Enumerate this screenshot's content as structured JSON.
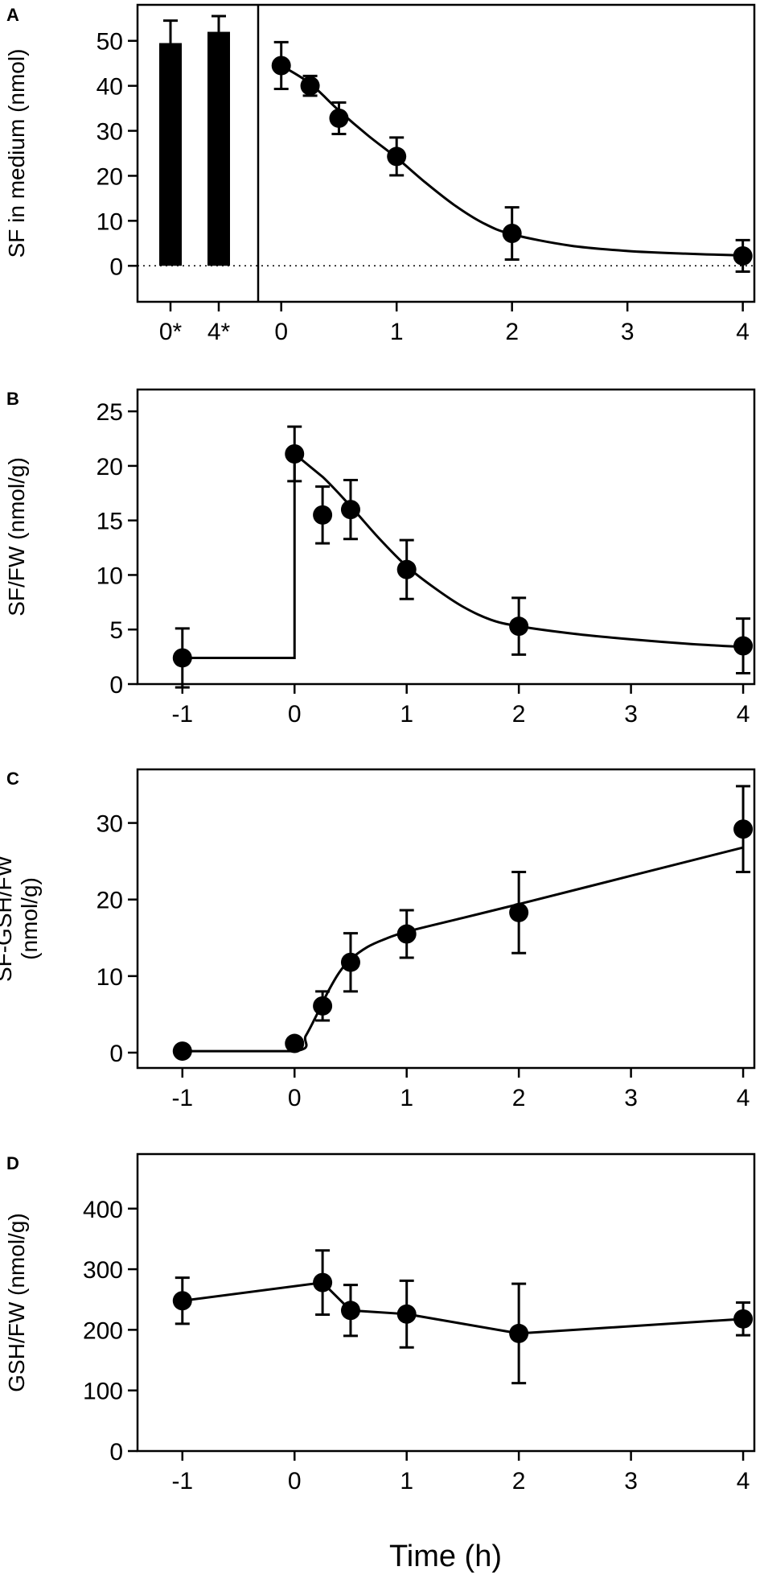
{
  "figure": {
    "x_axis_label": "Time (h)"
  },
  "chart_data": [
    {
      "panel": "A",
      "type": "bar+line",
      "ylabel": [
        "SF in medium (nmol)"
      ],
      "ylim": [
        -8,
        58
      ],
      "yticks": [
        0,
        10,
        20,
        30,
        40,
        50
      ],
      "xlim": [
        -0.2,
        4.1
      ],
      "xticks": [
        0,
        1,
        2,
        3,
        4
      ],
      "zero_dotted_line": true,
      "bars": {
        "categories": [
          "0*",
          "4*"
        ],
        "values": [
          49.5,
          52
        ],
        "errors": [
          5,
          3.5
        ]
      },
      "points": {
        "x": [
          0,
          0.25,
          0.5,
          1,
          2,
          4
        ],
        "y": [
          44.5,
          40,
          32.8,
          24.3,
          7.2,
          2.2
        ],
        "err": [
          5.2,
          2.2,
          3.5,
          4.2,
          5.8,
          3.5
        ]
      },
      "curve": {
        "x": [
          0,
          0.25,
          0.5,
          0.75,
          1,
          1.25,
          1.5,
          1.75,
          2,
          2.5,
          3,
          3.5,
          4
        ],
        "y": [
          44.5,
          40.5,
          34.5,
          29,
          24,
          18.5,
          13.5,
          9.5,
          7,
          4.5,
          3.3,
          2.7,
          2.3
        ]
      }
    },
    {
      "panel": "B",
      "type": "line",
      "ylabel": [
        "SF/FW (nmol/g)"
      ],
      "ylim": [
        0,
        27
      ],
      "yticks": [
        0,
        5,
        10,
        15,
        20,
        25
      ],
      "xlim": [
        -1.4,
        4.1
      ],
      "xticks": [
        -1,
        0,
        1,
        2,
        3,
        4
      ],
      "points": {
        "x": [
          -1,
          0,
          0.25,
          0.5,
          1,
          2,
          4
        ],
        "y": [
          2.4,
          21.1,
          15.5,
          16,
          10.5,
          5.3,
          3.5
        ],
        "err": [
          2.7,
          2.5,
          2.6,
          2.7,
          2.7,
          2.6,
          2.5
        ]
      },
      "curve": {
        "x": [
          -1,
          0,
          0,
          0.25,
          0.5,
          0.75,
          1,
          1.25,
          1.5,
          1.75,
          2,
          2.5,
          3,
          3.5,
          4
        ],
        "y": [
          2.4,
          2.4,
          21.1,
          19,
          16.3,
          13.4,
          10.8,
          8.8,
          7.1,
          5.9,
          5.3,
          4.6,
          4.1,
          3.7,
          3.4
        ]
      }
    },
    {
      "panel": "C",
      "type": "line",
      "ylabel": [
        "SF-GSH/FW",
        "(nmol/g)"
      ],
      "ylim": [
        -2,
        37
      ],
      "yticks": [
        0,
        10,
        20,
        30
      ],
      "xlim": [
        -1.4,
        4.1
      ],
      "xticks": [
        -1,
        0,
        1,
        2,
        3,
        4
      ],
      "points": {
        "x": [
          -1,
          0,
          0.25,
          0.5,
          1,
          2,
          4
        ],
        "y": [
          0.2,
          1.2,
          6.1,
          11.8,
          15.5,
          18.3,
          29.2
        ],
        "err": [
          0,
          0,
          1.9,
          3.8,
          3.1,
          5.3,
          5.6
        ]
      },
      "curve": {
        "x": [
          -1,
          0,
          0.1,
          0.2,
          0.3,
          0.4,
          0.5,
          0.65,
          0.8,
          1,
          1.5,
          2,
          3,
          4
        ],
        "y": [
          0.2,
          0.2,
          2.2,
          5,
          8,
          10.5,
          12.2,
          13.8,
          14.8,
          15.8,
          17.6,
          19.4,
          23.1,
          26.8
        ]
      }
    },
    {
      "panel": "D",
      "type": "line",
      "ylabel": [
        "GSH/FW (nmol/g)"
      ],
      "ylim": [
        0,
        490
      ],
      "yticks": [
        0,
        100,
        200,
        300,
        400
      ],
      "xlim": [
        -1.4,
        4.1
      ],
      "xticks": [
        -1,
        0,
        1,
        2,
        3,
        4
      ],
      "points": {
        "x": [
          -1,
          0.25,
          0.5,
          1,
          2,
          4
        ],
        "y": [
          248,
          278,
          232,
          226,
          194,
          218
        ],
        "err": [
          38,
          53,
          42,
          55,
          82,
          27
        ]
      },
      "curve": {
        "x": [
          -1,
          0.25,
          0.5,
          1,
          2,
          4
        ],
        "y": [
          248,
          278,
          232,
          226,
          194,
          218
        ]
      }
    }
  ]
}
